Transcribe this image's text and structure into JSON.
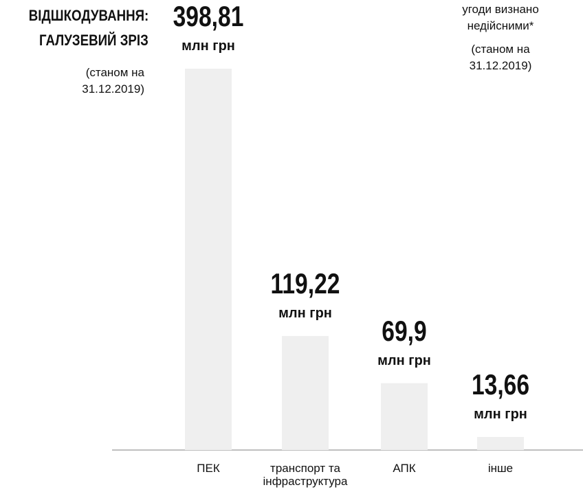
{
  "chart_data": {
    "type": "bar",
    "title": [
      "ВІДШКОДУВАННЯ:",
      "ГАЛУЗЕВИЙ ЗРІЗ"
    ],
    "subtitle": [
      "(станом на",
      "31.12.2019)"
    ],
    "note": [
      "угоди визнано",
      "недійсними*",
      "(станом на",
      "31.12.2019)"
    ],
    "categories": [
      "ПЕК",
      "транспорт та інфраструктура",
      "АПК",
      "інше"
    ],
    "values": [
      398.81,
      119.22,
      69.9,
      13.66
    ],
    "value_labels": [
      "398,81",
      "119,22",
      "69,9",
      "13,66"
    ],
    "unit_label": "млн грн",
    "color": "#efefef"
  }
}
